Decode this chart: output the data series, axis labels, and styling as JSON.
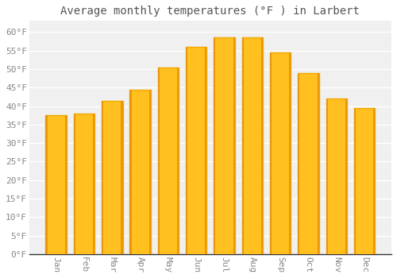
{
  "title": "Average monthly temperatures (°F ) in Larbert",
  "months": [
    "Jan",
    "Feb",
    "Mar",
    "Apr",
    "May",
    "Jun",
    "Jul",
    "Aug",
    "Sep",
    "Oct",
    "Nov",
    "Dec"
  ],
  "values": [
    37.5,
    38.0,
    41.5,
    44.5,
    50.5,
    56.0,
    58.5,
    58.5,
    54.5,
    49.0,
    42.0,
    39.5
  ],
  "bar_color_main": "#FFC020",
  "bar_color_left": "#F5A800",
  "bar_color_right": "#F5A800",
  "background_color": "#FFFFFF",
  "plot_bg_color": "#F0F0F0",
  "grid_color": "#FFFFFF",
  "yticks": [
    0,
    5,
    10,
    15,
    20,
    25,
    30,
    35,
    40,
    45,
    50,
    55,
    60
  ],
  "ylim": [
    0,
    63
  ],
  "title_fontsize": 10,
  "tick_fontsize": 8,
  "tick_color": "#888888",
  "title_color": "#555555",
  "axis_color": "#333333"
}
